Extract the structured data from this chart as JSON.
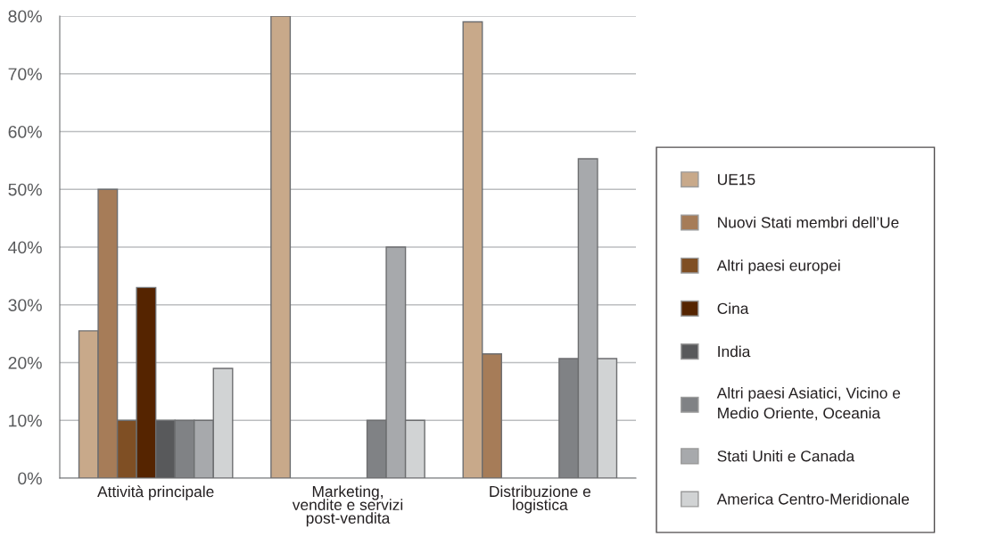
{
  "chart_data": {
    "type": "bar",
    "categories": [
      "Attività principale",
      "Marketing,\nvendite e servizi\npost-vendita",
      "Distribuzione e\nlogistica"
    ],
    "series": [
      {
        "name": "UE15",
        "color": "#c8a98a",
        "values": [
          25.5,
          80,
          79
        ]
      },
      {
        "name": "Nuovi Stati membri dell’Ue",
        "color": "#a67c58",
        "values": [
          50,
          null,
          21.5
        ]
      },
      {
        "name": "Altri paesi europei",
        "color": "#7f4f24",
        "values": [
          10,
          null,
          null
        ]
      },
      {
        "name": "Cina",
        "color": "#552400",
        "values": [
          33,
          null,
          null
        ]
      },
      {
        "name": "India",
        "color": "#58595b",
        "values": [
          10,
          null,
          null
        ]
      },
      {
        "name": "Altri paesi Asiatici, Vicino e\nMedio Oriente, Oceania",
        "color": "#808285",
        "values": [
          10,
          10,
          20.7
        ]
      },
      {
        "name": "Stati Uniti e Canada",
        "color": "#a7a9ac",
        "values": [
          10,
          40,
          55.3
        ]
      },
      {
        "name": "America Centro-Meridionale",
        "color": "#d1d3d4",
        "values": [
          19,
          10,
          20.7
        ]
      }
    ],
    "ylim": [
      0,
      80
    ],
    "yticks": [
      {
        "value": 0,
        "label": "0%"
      },
      {
        "value": 10,
        "label": "10%"
      },
      {
        "value": 20,
        "label": "20%"
      },
      {
        "value": 30,
        "label": "30%"
      },
      {
        "value": 40,
        "label": "40%"
      },
      {
        "value": 50,
        "label": "50%"
      },
      {
        "value": 60,
        "label": "60%"
      },
      {
        "value": 70,
        "label": "70%"
      },
      {
        "value": 80,
        "label": "80%"
      }
    ],
    "grid": "y",
    "legend": "right"
  }
}
